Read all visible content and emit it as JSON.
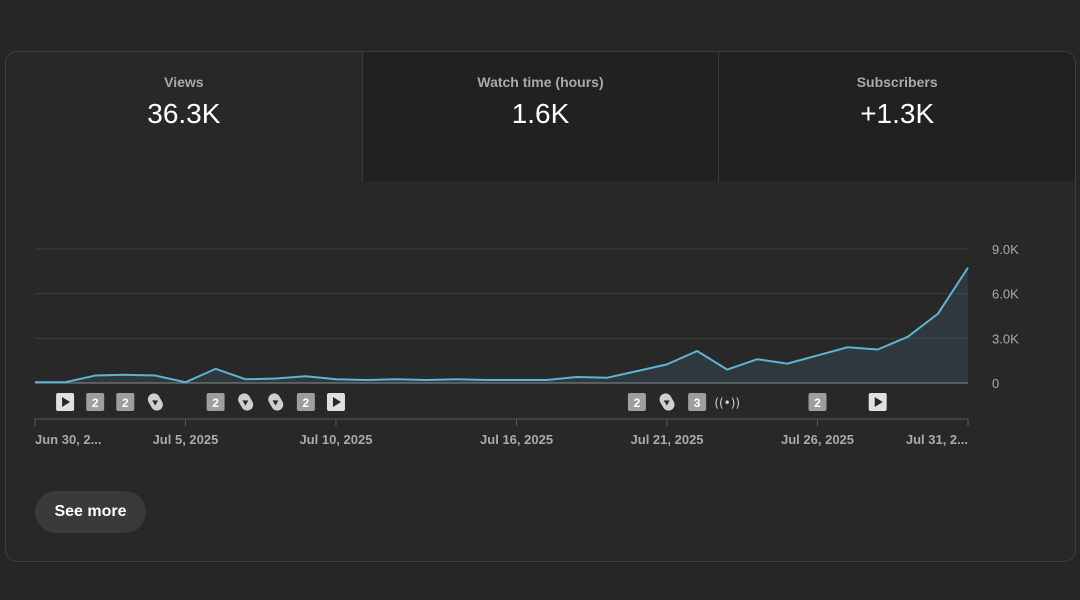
{
  "metrics": [
    {
      "label": "Views",
      "value": "36.3K"
    },
    {
      "label": "Watch time (hours)",
      "value": "1.6K"
    },
    {
      "label": "Subscribers",
      "value": "+1.3K"
    }
  ],
  "see_more_label": "See more",
  "chart_data": {
    "type": "area",
    "title": "",
    "xlabel": "",
    "ylabel": "",
    "ylim": [
      0,
      9000
    ],
    "y_ticks": [
      0,
      3000,
      6000,
      9000
    ],
    "y_tick_labels": [
      "0",
      "3.0K",
      "6.0K",
      "9.0K"
    ],
    "x_tick_labels": [
      {
        "day": 0,
        "label": "Jun 30, 2..."
      },
      {
        "day": 5,
        "label": "Jul 5, 2025"
      },
      {
        "day": 10,
        "label": "Jul 10, 2025"
      },
      {
        "day": 16,
        "label": "Jul 16, 2025"
      },
      {
        "day": 21,
        "label": "Jul 21, 2025"
      },
      {
        "day": 26,
        "label": "Jul 26, 2025"
      },
      {
        "day": 31,
        "label": "Jul 31, 2..."
      }
    ],
    "x": [
      "Jun 30",
      "Jul 1",
      "Jul 2",
      "Jul 3",
      "Jul 4",
      "Jul 5",
      "Jul 6",
      "Jul 7",
      "Jul 8",
      "Jul 9",
      "Jul 10",
      "Jul 11",
      "Jul 12",
      "Jul 13",
      "Jul 14",
      "Jul 15",
      "Jul 16",
      "Jul 17",
      "Jul 18",
      "Jul 19",
      "Jul 20",
      "Jul 21",
      "Jul 22",
      "Jul 23",
      "Jul 24",
      "Jul 25",
      "Jul 26",
      "Jul 27",
      "Jul 28",
      "Jul 29",
      "Jul 30",
      "Jul 31"
    ],
    "series": [
      {
        "values": [
          50,
          50,
          500,
          550,
          500,
          50,
          950,
          250,
          300,
          450,
          250,
          200,
          250,
          200,
          250,
          200,
          200,
          200,
          400,
          350,
          800,
          1250,
          2150,
          900,
          1600,
          1300,
          1850,
          2400,
          2250,
          3100,
          4650,
          7750
        ],
        "color": "#5fb3d3"
      }
    ],
    "markers": [
      {
        "day": 1,
        "type": "video"
      },
      {
        "day": 2,
        "type": "count",
        "label": "2"
      },
      {
        "day": 3,
        "type": "count",
        "label": "2"
      },
      {
        "day": 4,
        "type": "short"
      },
      {
        "day": 6,
        "type": "count",
        "label": "2"
      },
      {
        "day": 7,
        "type": "short"
      },
      {
        "day": 8,
        "type": "short"
      },
      {
        "day": 9,
        "type": "count",
        "label": "2"
      },
      {
        "day": 10,
        "type": "video"
      },
      {
        "day": 20,
        "type": "count",
        "label": "2"
      },
      {
        "day": 21,
        "type": "short"
      },
      {
        "day": 22,
        "type": "count",
        "label": "3"
      },
      {
        "day": 23,
        "type": "live",
        "label": "((•))"
      },
      {
        "day": 26,
        "type": "count",
        "label": "2"
      },
      {
        "day": 28,
        "type": "video"
      }
    ]
  }
}
